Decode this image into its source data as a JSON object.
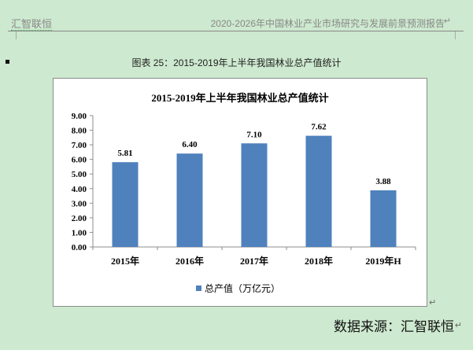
{
  "header": {
    "left": "汇智联恒",
    "right": "2020-2026年中国林业产业市场研究与发展前景预测报告"
  },
  "caption": "图表 25：2015-2019年上半年我国林业总产值统计",
  "source": "数据来源：汇智联恒",
  "para_mark": "↵",
  "chart_data": {
    "type": "bar",
    "title": "2015-2019年上半年我国林业总产值统计",
    "categories": [
      "2015年",
      "2016年",
      "2017年",
      "2018年",
      "2019年H"
    ],
    "series": [
      {
        "name": "总产值（万亿元）",
        "values": [
          5.81,
          6.4,
          7.1,
          7.62,
          3.88
        ],
        "color": "#4f81bd"
      }
    ],
    "data_labels": [
      "5.81",
      "6.40",
      "7.10",
      "7.62",
      "3.88"
    ],
    "y_ticks": [
      "0.00",
      "1.00",
      "2.00",
      "3.00",
      "4.00",
      "5.00",
      "6.00",
      "7.00",
      "8.00",
      "9.00"
    ],
    "ylim": [
      0,
      9
    ],
    "grid": false,
    "legend": "bottom"
  }
}
